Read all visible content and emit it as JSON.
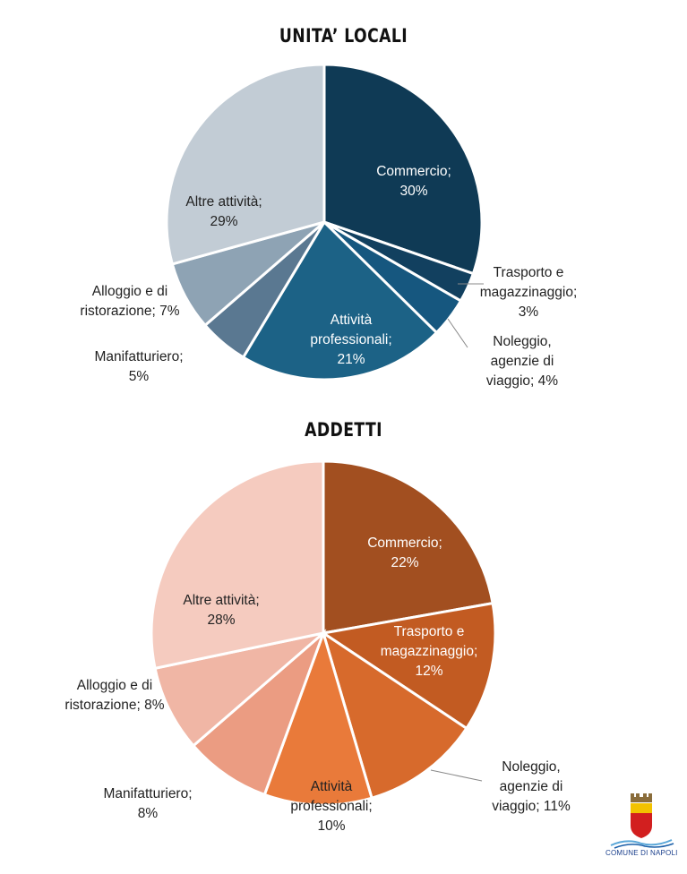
{
  "chart_data": [
    {
      "type": "pie",
      "title": "UNITA’ LOCALI",
      "slices": [
        {
          "category": "Commercio",
          "value": 30,
          "label": [
            "Commercio;",
            "30%"
          ],
          "color": "#0f3a55",
          "text_color": "#ffffff"
        },
        {
          "category": "Trasporto e magazzinaggio",
          "value": 3,
          "label": [
            "Trasporto e",
            "magazzinaggio;",
            "3%"
          ],
          "color": "#12405f",
          "text_color": "#222222"
        },
        {
          "category": "Noleggio, agenzie di viaggio",
          "value": 4,
          "label": [
            "Noleggio,",
            "agenzie di",
            "viaggio; 4%"
          ],
          "color": "#16577f",
          "text_color": "#222222"
        },
        {
          "category": "Attività professionali",
          "value": 21,
          "label": [
            "Attività",
            "professionali;",
            "21%"
          ],
          "color": "#1c6286",
          "text_color": "#ffffff"
        },
        {
          "category": "Manifatturiero",
          "value": 5,
          "label": [
            "Manifatturiero;",
            "5%"
          ],
          "color": "#5a7891",
          "text_color": "#222222"
        },
        {
          "category": "Alloggio e di ristorazione",
          "value": 7,
          "label": [
            "Alloggio e di",
            "ristorazione; 7%"
          ],
          "color": "#8ea3b4",
          "text_color": "#222222"
        },
        {
          "category": "Altre attività",
          "value": 29,
          "label": [
            "Altre attività;",
            "29%"
          ],
          "color": "#c2ccd5",
          "text_color": "#222222"
        }
      ]
    },
    {
      "type": "pie",
      "title": "ADDETTI",
      "slices": [
        {
          "category": "Commercio",
          "value": 22,
          "label": [
            "Commercio;",
            "22%"
          ],
          "color": "#a24f20",
          "text_color": "#ffffff"
        },
        {
          "category": "Trasporto e magazzinaggio",
          "value": 12,
          "label": [
            "Trasporto e",
            "magazzinaggio;",
            "12%"
          ],
          "color": "#c25b22",
          "text_color": "#ffffff"
        },
        {
          "category": "Noleggio, agenzie di viaggio",
          "value": 11,
          "label": [
            "Noleggio,",
            "agenzie di",
            "viaggio; 11%"
          ],
          "color": "#d76a2c",
          "text_color": "#222222"
        },
        {
          "category": "Attività professionali",
          "value": 10,
          "label": [
            "Attività",
            "professionali;",
            "10%"
          ],
          "color": "#e97a3a",
          "text_color": "#222222"
        },
        {
          "category": "Manifatturiero",
          "value": 8,
          "label": [
            "Manifatturiero;",
            "8%"
          ],
          "color": "#eb9c82",
          "text_color": "#222222"
        },
        {
          "category": "Alloggio e di ristorazione",
          "value": 8,
          "label": [
            "Alloggio e di",
            "ristorazione; 8%"
          ],
          "color": "#f0b6a5",
          "text_color": "#222222"
        },
        {
          "category": "Altre attività",
          "value": 28,
          "label": [
            "Altre attività;",
            "28%"
          ],
          "color": "#f5cbbf",
          "text_color": "#222222"
        }
      ]
    }
  ],
  "logo": {
    "text": "COMUNE DI NAPOLI"
  }
}
